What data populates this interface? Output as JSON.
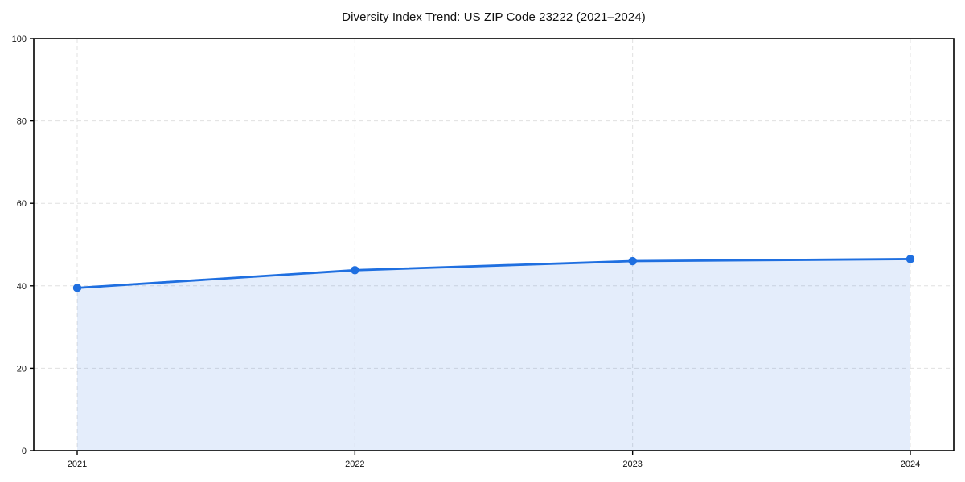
{
  "chart_data": {
    "type": "area",
    "title": "Diversity Index Trend: US ZIP Code 23222 (2021–2024)",
    "categories": [
      "2021",
      "2022",
      "2023",
      "2024"
    ],
    "values": [
      39.5,
      43.8,
      46.0,
      46.5
    ],
    "xlabel": "",
    "ylabel": "",
    "ylim": [
      0,
      100
    ],
    "y_ticks": [
      0,
      20,
      40,
      60,
      80,
      100
    ],
    "grid": "dashed",
    "legend": "none",
    "colors": {
      "line": "#1f6fe0",
      "marker": "#1f6fe0",
      "fill_rgba": "rgba(31,111,224,0.12)",
      "grid": "#e0e0e0",
      "axis": "#000000",
      "tick_label": "#111111",
      "background": "#ffffff"
    }
  }
}
